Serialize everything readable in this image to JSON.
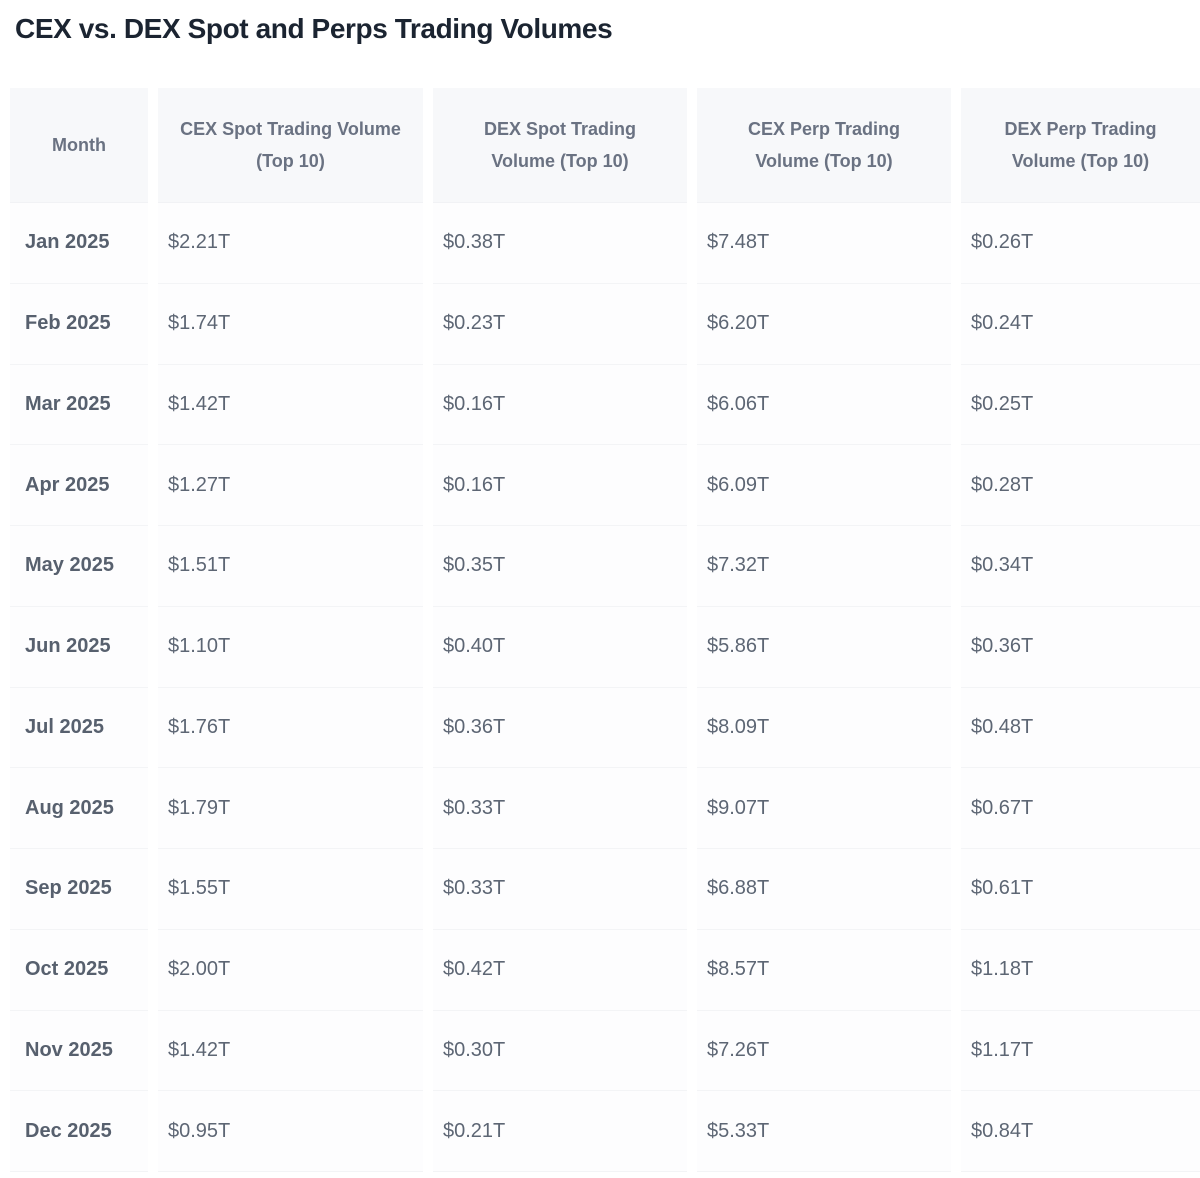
{
  "title": "CEX vs. DEX Spot and Perps Trading Volumes",
  "table": {
    "headers": [
      "Month",
      "CEX Spot Trading Volume (Top 10)",
      "DEX Spot Trading Volume (Top 10)",
      "CEX Perp Trading Volume (Top 10)",
      "DEX Perp Trading Volume (Top 10)"
    ],
    "rows": [
      {
        "cells": [
          "Jan 2025",
          "$2.21T",
          "$0.38T",
          "$7.48T",
          "$0.26T"
        ]
      },
      {
        "cells": [
          "Feb 2025",
          "$1.74T",
          "$0.23T",
          "$6.20T",
          "$0.24T"
        ]
      },
      {
        "cells": [
          "Mar 2025",
          "$1.42T",
          "$0.16T",
          "$6.06T",
          "$0.25T"
        ]
      },
      {
        "cells": [
          "Apr 2025",
          "$1.27T",
          "$0.16T",
          "$6.09T",
          "$0.28T"
        ]
      },
      {
        "cells": [
          "May 2025",
          "$1.51T",
          "$0.35T",
          "$7.32T",
          "$0.34T"
        ]
      },
      {
        "cells": [
          "Jun 2025",
          "$1.10T",
          "$0.40T",
          "$5.86T",
          "$0.36T"
        ]
      },
      {
        "cells": [
          "Jul 2025",
          "$1.76T",
          "$0.36T",
          "$8.09T",
          "$0.48T"
        ]
      },
      {
        "cells": [
          "Aug 2025",
          "$1.79T",
          "$0.33T",
          "$9.07T",
          "$0.67T"
        ]
      },
      {
        "cells": [
          "Sep 2025",
          "$1.55T",
          "$0.33T",
          "$6.88T",
          "$0.61T"
        ]
      },
      {
        "cells": [
          "Oct 2025",
          "$2.00T",
          "$0.42T",
          "$8.57T",
          "$1.18T"
        ]
      },
      {
        "cells": [
          "Nov 2025",
          "$1.42T",
          "$0.30T",
          "$7.26T",
          "$1.17T"
        ]
      },
      {
        "cells": [
          "Dec 2025",
          "$0.95T",
          "$0.21T",
          "$5.33T",
          "$0.84T"
        ]
      }
    ]
  },
  "colors": {
    "title_text": "#1b2431",
    "header_text": "#6a7282",
    "month_text": "#57606e",
    "value_text": "#5d6674",
    "header_bg": "#f7f8fa",
    "cell_bg": "#fdfdfe",
    "row_border": "#f3f4f6"
  },
  "chart_data": {
    "type": "table",
    "title": "CEX vs. DEX Spot and Perps Trading Volumes",
    "unit": "USD trillions",
    "categories": [
      "Jan 2025",
      "Feb 2025",
      "Mar 2025",
      "Apr 2025",
      "May 2025",
      "Jun 2025",
      "Jul 2025",
      "Aug 2025",
      "Sep 2025",
      "Oct 2025",
      "Nov 2025",
      "Dec 2025"
    ],
    "series": [
      {
        "name": "CEX Spot Trading Volume (Top 10)",
        "values": [
          2.21,
          1.74,
          1.42,
          1.27,
          1.51,
          1.1,
          1.76,
          1.79,
          1.55,
          2.0,
          1.42,
          0.95
        ]
      },
      {
        "name": "DEX Spot Trading Volume (Top 10)",
        "values": [
          0.38,
          0.23,
          0.16,
          0.16,
          0.35,
          0.4,
          0.36,
          0.33,
          0.33,
          0.42,
          0.3,
          0.21
        ]
      },
      {
        "name": "CEX Perp Trading Volume (Top 10)",
        "values": [
          7.48,
          6.2,
          6.06,
          6.09,
          7.32,
          5.86,
          8.09,
          9.07,
          6.88,
          8.57,
          7.26,
          5.33
        ]
      },
      {
        "name": "DEX Perp Trading Volume (Top 10)",
        "values": [
          0.26,
          0.24,
          0.25,
          0.28,
          0.34,
          0.36,
          0.48,
          0.67,
          0.61,
          1.18,
          1.17,
          0.84
        ]
      }
    ]
  }
}
